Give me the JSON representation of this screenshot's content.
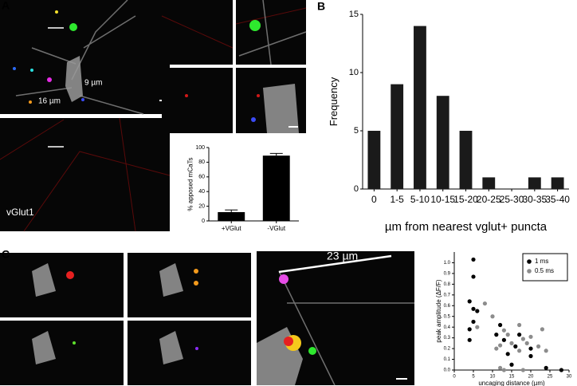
{
  "panel_labels": [
    "A",
    "B",
    "C"
  ],
  "image_labels": [
    "9 µm",
    "16 µm",
    "vGlut1",
    "23 µm"
  ],
  "chart_data": [
    {
      "type": "bar",
      "ylabel": "% apposed mCaTs",
      "categories": [
        "+VGlut",
        "-VGlut"
      ],
      "values": [
        12,
        89
      ],
      "errors": [
        3,
        3
      ],
      "color": "#000000",
      "ylim": [
        0,
        100
      ],
      "yticks": [
        0,
        20,
        40,
        60,
        80,
        100
      ]
    },
    {
      "type": "bar",
      "xlabel": "µm from nearest vglut+ puncta",
      "ylabel": "Frequency",
      "categories": [
        "0",
        "1-5",
        "5-10",
        "10-15",
        "15-20",
        "20-25",
        "25-30",
        "30-35",
        "35-40"
      ],
      "values": [
        5,
        9,
        14,
        8,
        5,
        1,
        0,
        1,
        1
      ],
      "color": "#1a1a1a",
      "ylim": [
        0,
        15
      ],
      "yticks": [
        0,
        5,
        10,
        15
      ]
    },
    {
      "type": "scatter",
      "xlabel": "uncaging distance (µm)",
      "ylabel": "peak amplitude (ΔF/F)",
      "xlim": [
        0,
        30
      ],
      "xticks": [
        0,
        5,
        10,
        15,
        20,
        25,
        30
      ],
      "ylim": [
        0,
        1.1
      ],
      "yticks": [
        {
          "value": 0,
          "label": "0.0"
        },
        0.1,
        0.2,
        0.3,
        0.4,
        0.5,
        0.6,
        0.7,
        0.8,
        0.9,
        {
          "value": 1,
          "label": "1.0"
        }
      ],
      "legend": "upper right",
      "series": [
        {
          "name": "1 ms",
          "color": "#000000",
          "x": [
            4,
            5,
            5,
            5,
            5,
            4,
            4,
            6,
            11,
            12,
            13,
            14,
            15,
            17,
            20,
            20,
            24,
            28,
            16
          ],
          "values": [
            0.64,
            1.03,
            0.87,
            0.57,
            0.45,
            0.38,
            0.28,
            0.55,
            0.33,
            0.42,
            0.28,
            0.15,
            0.05,
            0.33,
            0.2,
            0.13,
            0.02,
            0,
            0.22
          ]
        },
        {
          "name": "0.5 ms",
          "color": "#8c8c8c",
          "x": [
            6,
            8,
            10,
            11,
            12,
            13,
            14,
            15,
            17,
            18,
            17,
            19,
            20,
            22,
            23,
            24,
            12,
            18,
            13
          ],
          "values": [
            0.4,
            0.62,
            0.5,
            0.2,
            0.23,
            0.37,
            0.33,
            0.25,
            0.42,
            0.29,
            0.18,
            0.25,
            0.31,
            0.22,
            0.38,
            0.18,
            0.02,
            0,
            0
          ]
        }
      ]
    }
  ]
}
